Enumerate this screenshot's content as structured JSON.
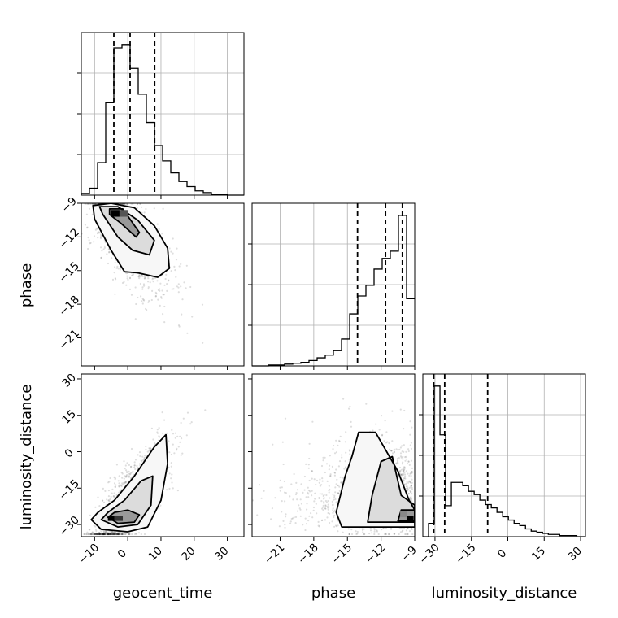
{
  "figure": {
    "type": "corner-plot",
    "parameters": [
      "geocent_time",
      "phase",
      "luminosity_distance"
    ]
  },
  "chart_data": [
    {
      "type": "histogram",
      "panel": "geocent_time",
      "xlim": [
        -14,
        35
      ],
      "bin_edges": [
        -14,
        -11.55,
        -9.1,
        -6.65,
        -4.2,
        -1.75,
        0.7,
        3.15,
        5.6,
        8.05,
        10.5,
        12.95,
        15.4,
        17.85,
        20.3,
        22.75,
        25.2,
        27.65,
        30.1,
        32.55,
        35
      ],
      "counts": [
        2,
        8,
        38,
        108,
        172,
        176,
        148,
        118,
        85,
        58,
        40,
        26,
        16,
        10,
        5,
        3,
        1,
        1,
        0,
        0
      ],
      "dashed_lines": [
        -4.2,
        0.7,
        8.1
      ],
      "xticks": [
        -10,
        0,
        10,
        20,
        30
      ],
      "grid": true
    },
    {
      "type": "histogram",
      "panel": "phase",
      "xlim": [
        -23.5,
        -9
      ],
      "bin_edges": [
        -23.5,
        -22.775,
        -22.05,
        -21.325,
        -20.6,
        -19.875,
        -19.15,
        -18.425,
        -17.7,
        -16.975,
        -16.25,
        -15.525,
        -14.8,
        -14.075,
        -13.35,
        -12.625,
        -11.9,
        -11.175,
        -10.45,
        -9.725,
        -9
      ],
      "counts": [
        0,
        0,
        1,
        1,
        2,
        3,
        4,
        6,
        9,
        12,
        17,
        30,
        58,
        78,
        90,
        108,
        120,
        128,
        168,
        75
      ],
      "dashed_lines": [
        -14.1,
        -11.6,
        -10.1
      ],
      "xticks": [
        -21,
        -18,
        -15,
        -12,
        -9
      ],
      "grid": true
    },
    {
      "type": "histogram",
      "panel": "luminosity_distance",
      "xlim": [
        -35,
        32
      ],
      "bin_edges": [
        -35,
        -32.65,
        -30.3,
        -27.95,
        -25.6,
        -23.25,
        -20.9,
        -18.55,
        -16.2,
        -13.85,
        -11.5,
        -9.15,
        -6.8,
        -4.45,
        -2.1,
        0.25,
        2.6,
        4.95,
        7.3,
        9.65,
        12,
        14.35,
        16.7,
        19.05,
        21.4,
        23.75,
        26.1,
        28.45,
        30.8,
        32
      ],
      "counts": [
        0,
        12,
        136,
        92,
        28,
        49,
        49,
        46,
        41,
        38,
        33,
        29,
        26,
        22,
        18,
        15,
        12,
        10,
        7,
        5,
        4,
        3,
        2,
        2,
        1,
        1,
        1,
        0,
        0
      ],
      "dashed_lines": [
        -30.5,
        -26.0,
        -8.3
      ],
      "xticks": [
        -30,
        -15,
        0,
        15,
        30
      ],
      "grid": true
    },
    {
      "type": "scatter-density",
      "panel": "phase vs geocent_time",
      "x_param": "geocent_time",
      "y_param": "phase",
      "xlim": [
        -14,
        35
      ],
      "ylim": [
        -23.5,
        -9
      ],
      "xticks": [
        -10,
        0,
        10,
        20,
        30
      ],
      "yticks": [
        -9,
        -12,
        -15,
        -18,
        -21
      ],
      "mode": [
        -3.5,
        -10.0
      ],
      "contour_levels": [
        0.39,
        0.86,
        0.99
      ]
    },
    {
      "type": "scatter-density",
      "panel": "luminosity_distance vs geocent_time",
      "x_param": "geocent_time",
      "y_param": "luminosity_distance",
      "xlim": [
        -14,
        35
      ],
      "ylim": [
        -35,
        32
      ],
      "xticks": [
        -10,
        0,
        10,
        20,
        30
      ],
      "yticks": [
        30,
        15,
        0,
        -15,
        -30
      ],
      "mode": [
        -3.5,
        -27.5
      ],
      "contour_levels": [
        0.39,
        0.86,
        0.99
      ]
    },
    {
      "type": "scatter-density",
      "panel": "luminosity_distance vs phase",
      "x_param": "phase",
      "y_param": "luminosity_distance",
      "xlim": [
        -23.5,
        -9
      ],
      "ylim": [
        -35,
        32
      ],
      "xticks": [
        -21,
        -18,
        -15,
        -12,
        -9
      ],
      "yticks": [
        30,
        15,
        0,
        -15,
        -30
      ],
      "mode": [
        -9.6,
        -27.5
      ],
      "contour_levels": [
        0.39,
        0.86,
        0.99
      ]
    }
  ]
}
